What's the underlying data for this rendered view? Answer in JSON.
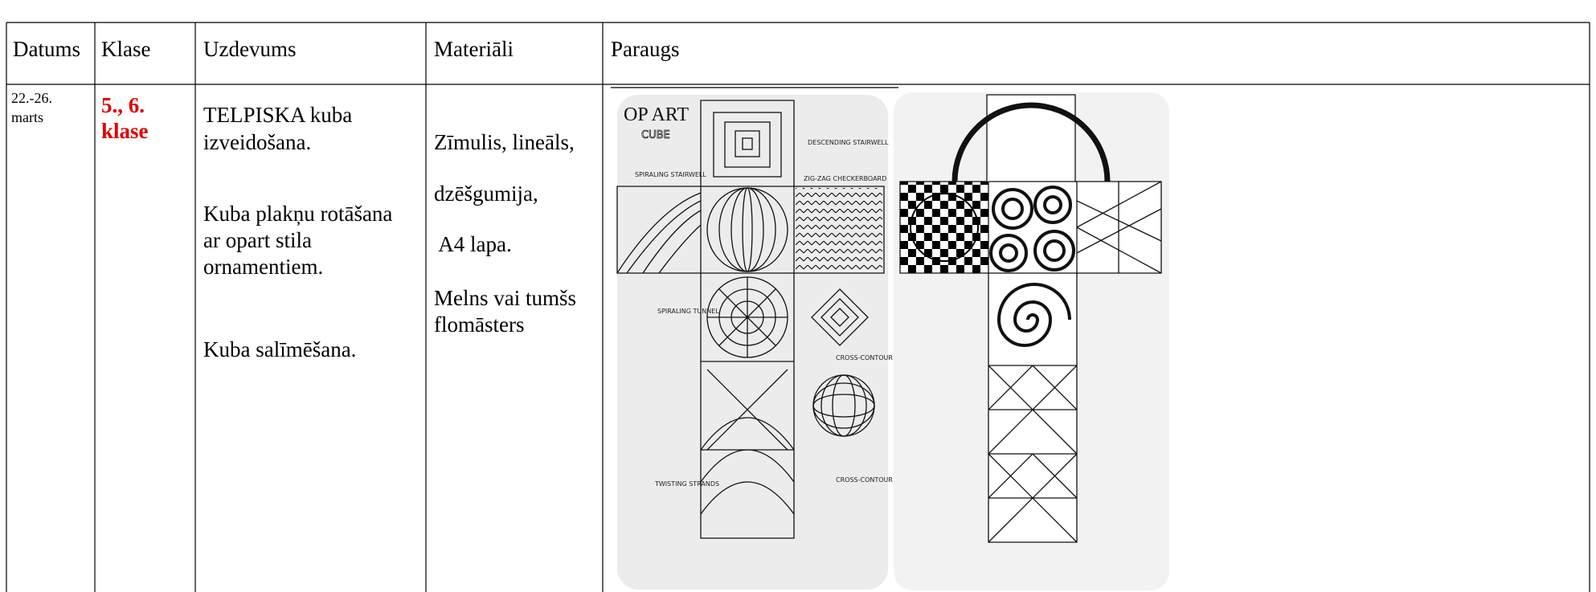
{
  "table": {
    "header": [
      "Datums",
      "Klase",
      "Uzdevums",
      "Materiāli",
      "Paraugs"
    ],
    "rows": [
      [
        {
          "lines": [
            "22.-26.",
            "marts"
          ]
        },
        {
          "lines": [
            "5., 6.",
            "klase"
          ]
        },
        {
          "lines": [
            "TELPISKA kuba",
            "izveidošana.",
            "Kuba plakņu rotāšana",
            "ar opart stila",
            "ornamentiem.",
            "Kuba salīmēšana."
          ]
        },
        {
          "lines": [
            "Zīmulis, lineāls,",
            "dzēšgumija,",
            " A4 lapa.",
            "Melns vai tumšs",
            "flomāsters"
          ]
        },
        {
          "image_texts": [
            "OP ART",
            "CUBE",
            "DESCENDING STAIRWELL",
            "SPIRALING STAIRWELL",
            "ZIG-ZAG CHECKERBOARD",
            "SPIRALING TUNNEL",
            "CROSS-CONTOUR",
            "TWISTING STRANDS",
            "CROSS-CONTOUR CIRCLE"
          ]
        }
      ]
    ]
  }
}
